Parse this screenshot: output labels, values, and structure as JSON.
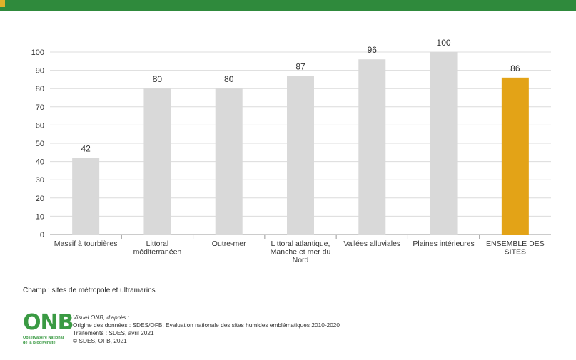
{
  "colors": {
    "header": "#2f8a3c",
    "accent": "#e0b22a",
    "bar": "#d9d9d9",
    "highlight_bar": "#e3a317",
    "logo": "#3a9a43"
  },
  "chart_data": {
    "type": "bar",
    "categories": [
      [
        "Massif à tourbières"
      ],
      [
        "Littoral",
        "méditerranéen"
      ],
      [
        "Outre-mer"
      ],
      [
        "Littoral atlantique,",
        "Manche et mer du",
        "Nord"
      ],
      [
        "Vallées alluviales"
      ],
      [
        "Plaines intérieures"
      ],
      [
        "ENSEMBLE DES",
        "SITES"
      ]
    ],
    "values": [
      42,
      80,
      80,
      87,
      96,
      100,
      86
    ],
    "highlight_index": 6,
    "ylim": [
      0,
      100
    ],
    "yticks": [
      0,
      10,
      20,
      30,
      40,
      50,
      60,
      70,
      80,
      90,
      100
    ],
    "grid": true,
    "xlabel": "",
    "ylabel": ""
  },
  "note": "Champ : sites de métropole et ultramarins",
  "footer": {
    "logo": "ONB",
    "logo_sub": [
      "Observatoire National",
      "de la Biodiversité"
    ],
    "credits": [
      "Visuel ONB, d'après :",
      "Origine des données : SDES/OFB, Evaluation nationale des sites humides emblématiques 2010-2020",
      "Traitements : SDES, avril 2021",
      "© SDES, OFB, 2021"
    ]
  }
}
